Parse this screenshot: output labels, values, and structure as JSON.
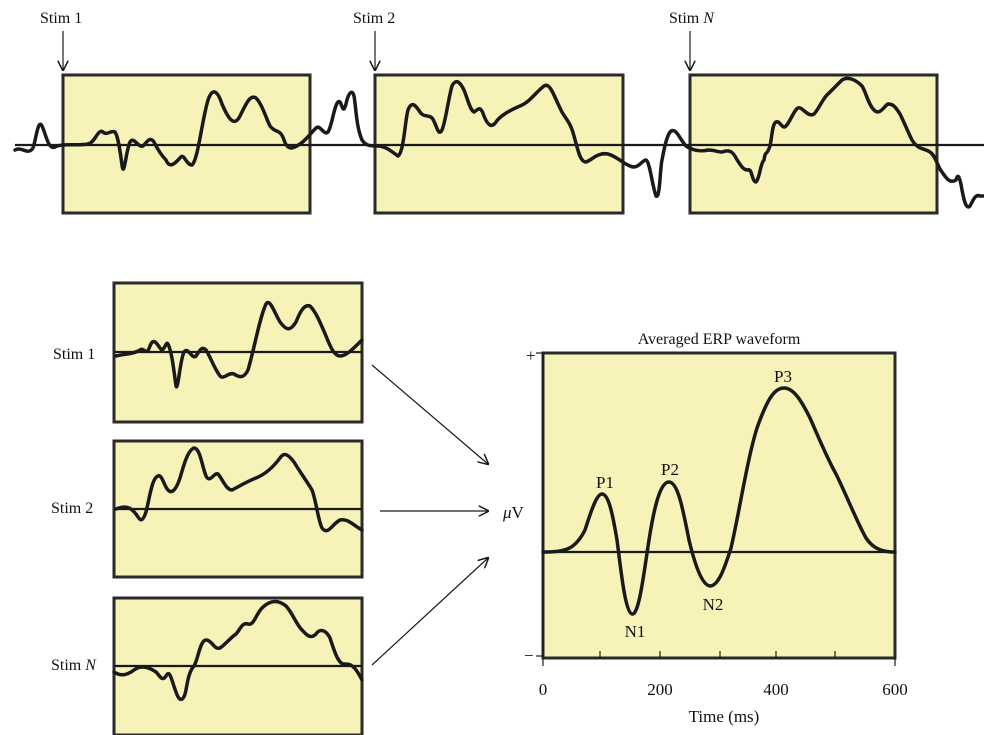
{
  "colors": {
    "panel_fill": "#f6f2b8",
    "panel_stroke": "#2a2a2a",
    "trace": "#1a1a1a"
  },
  "top_strip": {
    "markers": [
      {
        "prefix": "Stim ",
        "suffix": "1"
      },
      {
        "prefix": "Stim ",
        "suffix": "2"
      },
      {
        "prefix": "Stim ",
        "suffix": "N"
      }
    ]
  },
  "epochs": {
    "labels": [
      {
        "prefix": "Stim ",
        "suffix": "1"
      },
      {
        "prefix": "Stim ",
        "suffix": "2"
      },
      {
        "prefix": "Stim ",
        "suffix": "N"
      }
    ]
  },
  "averaged": {
    "title": "Averaged ERP waveform",
    "plus_label": "+",
    "minus_label": "−",
    "y_label_mu": "μ",
    "y_label_unit": "V",
    "x_label": "Time (ms)",
    "x_ticks": [
      "0",
      "200",
      "400",
      "600"
    ],
    "components": {
      "p1": "P1",
      "n1": "N1",
      "p2": "P2",
      "n2": "N2",
      "p3": "P3"
    }
  }
}
